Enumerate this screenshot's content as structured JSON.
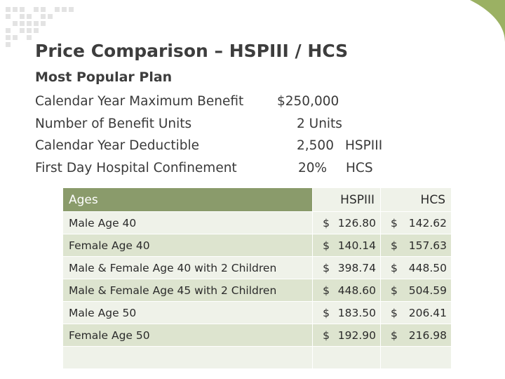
{
  "title": "Price Comparison – HSPIII / HCS",
  "subtitle": "Most Popular Plan",
  "plan_details": [
    {
      "label": "Calendar Year Maximum Benefit",
      "value": "$250,000",
      "unit": ""
    },
    {
      "label": "Number of Benefit Units",
      "value": "2 Units",
      "unit": ""
    },
    {
      "label": "Calendar Year Deductible",
      "value": "2,500",
      "unit": "HSPIII"
    },
    {
      "label": "First Day Hospital Confinement",
      "value": "20%",
      "unit": "HCS"
    }
  ],
  "table": {
    "headers": [
      "Ages",
      "HSPIII",
      "HCS"
    ],
    "currency": "$",
    "rows": [
      {
        "age": "Male Age 40",
        "hspiii": "126.80",
        "hcs": "142.62"
      },
      {
        "age": "Female Age 40",
        "hspiii": "140.14",
        "hcs": "157.63"
      },
      {
        "age": "Male & Female Age 40 with 2 Children",
        "hspiii": "398.74",
        "hcs": "448.50"
      },
      {
        "age": "Male & Female Age 45 with 2 Children",
        "hspiii": "448.60",
        "hcs": "504.59"
      },
      {
        "age": "Male Age 50",
        "hspiii": "183.50",
        "hcs": "206.41"
      },
      {
        "age": "Female Age 50",
        "hspiii": "192.90",
        "hcs": "216.98"
      }
    ]
  },
  "colors": {
    "header_green": "#8a9b6b",
    "row_light": "#eff2e9",
    "row_dark": "#dde4cf",
    "accent_swoosh": "#9bb163"
  }
}
